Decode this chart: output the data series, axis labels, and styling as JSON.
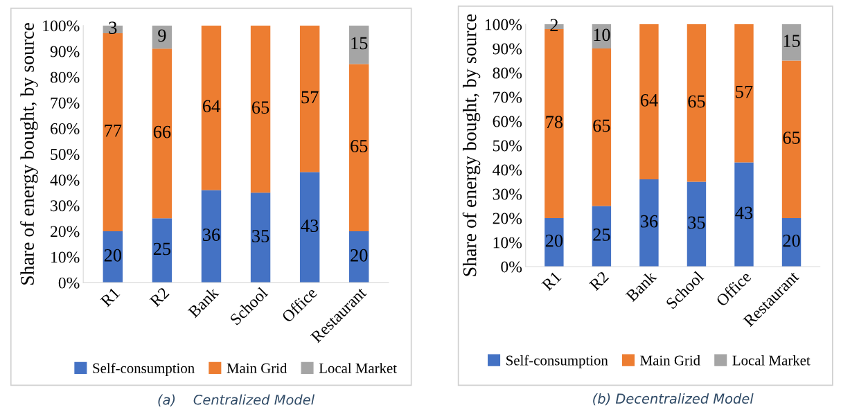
{
  "chart_data": [
    {
      "type": "bar",
      "stacked": true,
      "categories": [
        "R1",
        "R2",
        "Bank",
        "School",
        "Office",
        "Restaurant"
      ],
      "ylabel": "Share of energy bought, by source",
      "ylim": [
        0,
        100
      ],
      "yticks": [
        {
          "value": 0,
          "label": "0%"
        },
        {
          "value": 10,
          "label": "10%"
        },
        {
          "value": 20,
          "label": "20%"
        },
        {
          "value": 30,
          "label": "30%"
        },
        {
          "value": 40,
          "label": "40%"
        },
        {
          "value": 50,
          "label": "50%"
        },
        {
          "value": 60,
          "label": "60%"
        },
        {
          "value": 70,
          "label": "70%"
        },
        {
          "value": 80,
          "label": "80%"
        },
        {
          "value": 90,
          "label": "90%"
        },
        {
          "value": 100,
          "label": "100%"
        }
      ],
      "data_labels": true,
      "legend": "bottom",
      "annotations": [
        "(a)    Centralized Model"
      ],
      "series": [
        {
          "name": "Self-consumption",
          "color": "#4472c4",
          "values": [
            20,
            25,
            36,
            35,
            43,
            20
          ]
        },
        {
          "name": "Main Grid",
          "color": "#ed7d31",
          "values": [
            77,
            66,
            64,
            65,
            57,
            65
          ]
        },
        {
          "name": "Local Market",
          "color": "#a5a5a5",
          "values": [
            3,
            9,
            null,
            null,
            null,
            15
          ]
        }
      ]
    },
    {
      "type": "bar",
      "stacked": true,
      "categories": [
        "R1",
        "R2",
        "Bank",
        "School",
        "Office",
        "Restaurant"
      ],
      "ylabel": "Share of energy bought, by source",
      "ylim": [
        0,
        100
      ],
      "yticks": [
        {
          "value": 0,
          "label": "0%"
        },
        {
          "value": 10,
          "label": "10%"
        },
        {
          "value": 20,
          "label": "20%"
        },
        {
          "value": 30,
          "label": "30%"
        },
        {
          "value": 40,
          "label": "40%"
        },
        {
          "value": 50,
          "label": "50%"
        },
        {
          "value": 60,
          "label": "60%"
        },
        {
          "value": 70,
          "label": "70%"
        },
        {
          "value": 80,
          "label": "80%"
        },
        {
          "value": 90,
          "label": "90%"
        },
        {
          "value": 100,
          "label": "100%"
        }
      ],
      "data_labels": true,
      "legend": "bottom",
      "annotations": [
        "(b) Decentralized Model"
      ],
      "series": [
        {
          "name": "Self-consumption",
          "color": "#4472c4",
          "values": [
            20,
            25,
            36,
            35,
            43,
            20
          ]
        },
        {
          "name": "Main Grid",
          "color": "#ed7d31",
          "values": [
            78,
            65,
            64,
            65,
            57,
            65
          ]
        },
        {
          "name": "Local Market",
          "color": "#a5a5a5",
          "values": [
            2,
            10,
            null,
            null,
            null,
            15
          ]
        }
      ]
    }
  ]
}
